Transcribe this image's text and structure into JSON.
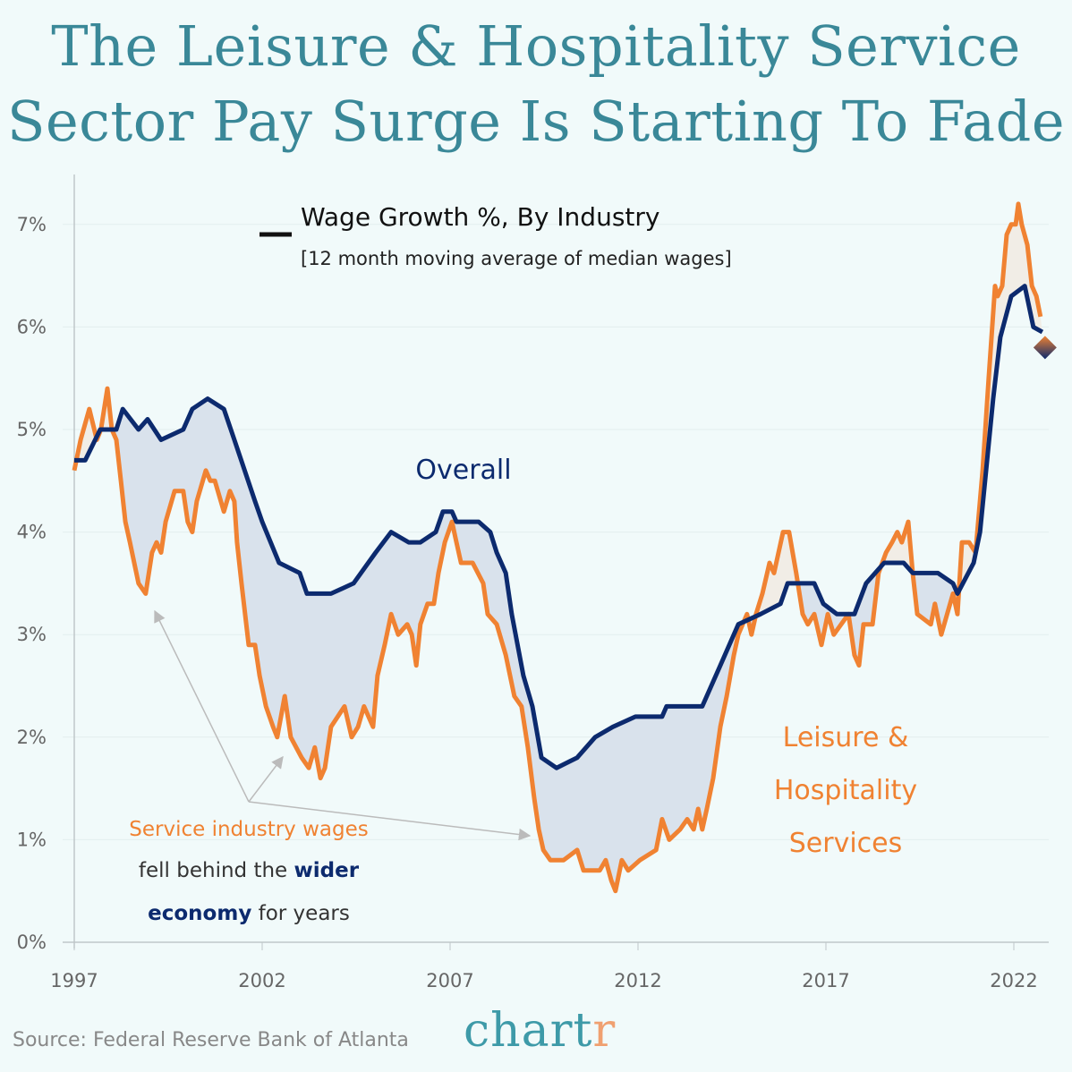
{
  "title_lines": [
    "The Leisure & Hospitality Service",
    "Sector Pay Surge Is Starting To Fade"
  ],
  "source": "Source: Federal Reserve Bank of Atlanta",
  "logo": {
    "main": "chart",
    "accent": "r"
  },
  "colors": {
    "overall": "#0c2a6e",
    "leisure": "#f08232",
    "gap_below": "#d9e2ec",
    "gap_above": "#f1ede6",
    "title": "#3a8898",
    "background": "#f1fafa"
  },
  "chart_data": {
    "type": "line",
    "title": "Wage Growth %, By Industry",
    "subtitle": "[12 month moving average of median wages]",
    "xlim": [
      1997,
      2022.9
    ],
    "ylim": [
      0,
      7.4
    ],
    "x_ticks": [
      1997,
      2002,
      2007,
      2012,
      2017,
      2022
    ],
    "x_tick_labels": [
      "1997",
      "2002",
      "2007",
      "2012",
      "2017",
      "2022"
    ],
    "y_ticks": [
      0,
      1,
      2,
      3,
      4,
      5,
      6,
      7
    ],
    "y_tick_labels": [
      "0%",
      "1%",
      "2%",
      "3%",
      "4%",
      "5%",
      "6%",
      "7%"
    ],
    "grid": "horizontal",
    "series": [
      {
        "name": "Overall",
        "key": "overall",
        "points": [
          [
            1997.0,
            4.7
          ],
          [
            1997.29,
            4.7
          ],
          [
            1997.69,
            5.0
          ],
          [
            1998.12,
            5.0
          ],
          [
            1998.29,
            5.2
          ],
          [
            1998.71,
            5.0
          ],
          [
            1998.95,
            5.1
          ],
          [
            1999.31,
            4.9
          ],
          [
            1999.9,
            5.0
          ],
          [
            2000.14,
            5.2
          ],
          [
            2000.55,
            5.3
          ],
          [
            2000.98,
            5.2
          ],
          [
            2001.26,
            4.9
          ],
          [
            2001.81,
            4.3
          ],
          [
            2002.0,
            4.1
          ],
          [
            2002.45,
            3.7
          ],
          [
            2003.0,
            3.6
          ],
          [
            2003.19,
            3.4
          ],
          [
            2003.83,
            3.4
          ],
          [
            2004.43,
            3.5
          ],
          [
            2005.02,
            3.8
          ],
          [
            2005.43,
            4.0
          ],
          [
            2005.9,
            3.9
          ],
          [
            2006.21,
            3.9
          ],
          [
            2006.62,
            4.0
          ],
          [
            2006.81,
            4.2
          ],
          [
            2007.05,
            4.2
          ],
          [
            2007.17,
            4.1
          ],
          [
            2007.76,
            4.1
          ],
          [
            2008.07,
            4.0
          ],
          [
            2008.24,
            3.8
          ],
          [
            2008.48,
            3.6
          ],
          [
            2008.64,
            3.2
          ],
          [
            2008.95,
            2.6
          ],
          [
            2009.19,
            2.3
          ],
          [
            2009.43,
            1.8
          ],
          [
            2009.83,
            1.7
          ],
          [
            2010.38,
            1.8
          ],
          [
            2010.86,
            2.0
          ],
          [
            2011.33,
            2.1
          ],
          [
            2011.93,
            2.2
          ],
          [
            2012.64,
            2.2
          ],
          [
            2012.76,
            2.3
          ],
          [
            2013.24,
            2.3
          ],
          [
            2013.71,
            2.3
          ],
          [
            2014.19,
            2.7
          ],
          [
            2014.67,
            3.1
          ],
          [
            2015.26,
            3.2
          ],
          [
            2015.79,
            3.3
          ],
          [
            2015.98,
            3.5
          ],
          [
            2016.45,
            3.5
          ],
          [
            2016.69,
            3.5
          ],
          [
            2016.93,
            3.3
          ],
          [
            2017.29,
            3.2
          ],
          [
            2017.76,
            3.2
          ],
          [
            2018.07,
            3.5
          ],
          [
            2018.55,
            3.7
          ],
          [
            2019.07,
            3.7
          ],
          [
            2019.31,
            3.6
          ],
          [
            2019.98,
            3.6
          ],
          [
            2020.38,
            3.5
          ],
          [
            2020.5,
            3.4
          ],
          [
            2020.93,
            3.7
          ],
          [
            2021.1,
            4.0
          ],
          [
            2021.45,
            5.3
          ],
          [
            2021.64,
            5.9
          ],
          [
            2021.93,
            6.3
          ],
          [
            2022.29,
            6.4
          ],
          [
            2022.52,
            6.0
          ],
          [
            2022.76,
            5.95
          ]
        ]
      },
      {
        "name": "Leisure & Hospitality Services",
        "key": "leisure",
        "points": [
          [
            1997.0,
            4.6
          ],
          [
            1997.17,
            4.9
          ],
          [
            1997.4,
            5.2
          ],
          [
            1997.6,
            4.9
          ],
          [
            1997.71,
            5.0
          ],
          [
            1997.88,
            5.4
          ],
          [
            1998.0,
            5.0
          ],
          [
            1998.12,
            4.9
          ],
          [
            1998.24,
            4.5
          ],
          [
            1998.36,
            4.1
          ],
          [
            1998.48,
            3.9
          ],
          [
            1998.71,
            3.5
          ],
          [
            1998.9,
            3.4
          ],
          [
            1999.07,
            3.8
          ],
          [
            1999.19,
            3.9
          ],
          [
            1999.31,
            3.8
          ],
          [
            1999.43,
            4.1
          ],
          [
            1999.67,
            4.4
          ],
          [
            1999.9,
            4.4
          ],
          [
            2000.02,
            4.1
          ],
          [
            2000.14,
            4.0
          ],
          [
            2000.26,
            4.3
          ],
          [
            2000.5,
            4.6
          ],
          [
            2000.62,
            4.5
          ],
          [
            2000.74,
            4.5
          ],
          [
            2000.98,
            4.2
          ],
          [
            2001.14,
            4.4
          ],
          [
            2001.26,
            4.3
          ],
          [
            2001.33,
            3.9
          ],
          [
            2001.45,
            3.5
          ],
          [
            2001.64,
            2.9
          ],
          [
            2001.81,
            2.9
          ],
          [
            2001.93,
            2.6
          ],
          [
            2002.1,
            2.3
          ],
          [
            2002.29,
            2.1
          ],
          [
            2002.4,
            2.0
          ],
          [
            2002.6,
            2.4
          ],
          [
            2002.76,
            2.0
          ],
          [
            2003.05,
            1.8
          ],
          [
            2003.24,
            1.7
          ],
          [
            2003.4,
            1.9
          ],
          [
            2003.55,
            1.6
          ],
          [
            2003.67,
            1.7
          ],
          [
            2003.83,
            2.1
          ],
          [
            2004.19,
            2.3
          ],
          [
            2004.38,
            2.0
          ],
          [
            2004.55,
            2.1
          ],
          [
            2004.71,
            2.3
          ],
          [
            2004.95,
            2.1
          ],
          [
            2005.07,
            2.6
          ],
          [
            2005.26,
            2.9
          ],
          [
            2005.43,
            3.2
          ],
          [
            2005.62,
            3.0
          ],
          [
            2005.86,
            3.1
          ],
          [
            2005.98,
            3.0
          ],
          [
            2006.1,
            2.7
          ],
          [
            2006.21,
            3.1
          ],
          [
            2006.4,
            3.3
          ],
          [
            2006.57,
            3.3
          ],
          [
            2006.69,
            3.6
          ],
          [
            2006.86,
            3.9
          ],
          [
            2007.05,
            4.1
          ],
          [
            2007.17,
            3.9
          ],
          [
            2007.29,
            3.7
          ],
          [
            2007.6,
            3.7
          ],
          [
            2007.88,
            3.5
          ],
          [
            2008.0,
            3.2
          ],
          [
            2008.24,
            3.1
          ],
          [
            2008.48,
            2.8
          ],
          [
            2008.71,
            2.4
          ],
          [
            2008.9,
            2.3
          ],
          [
            2009.07,
            1.9
          ],
          [
            2009.24,
            1.4
          ],
          [
            2009.36,
            1.1
          ],
          [
            2009.48,
            0.9
          ],
          [
            2009.67,
            0.8
          ],
          [
            2010.02,
            0.8
          ],
          [
            2010.38,
            0.9
          ],
          [
            2010.55,
            0.7
          ],
          [
            2010.98,
            0.7
          ],
          [
            2011.14,
            0.8
          ],
          [
            2011.29,
            0.6
          ],
          [
            2011.4,
            0.5
          ],
          [
            2011.57,
            0.8
          ],
          [
            2011.74,
            0.7
          ],
          [
            2012.05,
            0.8
          ],
          [
            2012.48,
            0.9
          ],
          [
            2012.64,
            1.2
          ],
          [
            2012.83,
            1.0
          ],
          [
            2013.12,
            1.1
          ],
          [
            2013.31,
            1.2
          ],
          [
            2013.48,
            1.1
          ],
          [
            2013.6,
            1.3
          ],
          [
            2013.71,
            1.1
          ],
          [
            2013.83,
            1.3
          ],
          [
            2014.0,
            1.6
          ],
          [
            2014.19,
            2.1
          ],
          [
            2014.36,
            2.4
          ],
          [
            2014.55,
            2.8
          ],
          [
            2014.67,
            3.0
          ],
          [
            2014.9,
            3.2
          ],
          [
            2015.02,
            3.0
          ],
          [
            2015.14,
            3.2
          ],
          [
            2015.31,
            3.4
          ],
          [
            2015.5,
            3.7
          ],
          [
            2015.62,
            3.6
          ],
          [
            2015.86,
            4.0
          ],
          [
            2016.02,
            4.0
          ],
          [
            2016.21,
            3.6
          ],
          [
            2016.38,
            3.2
          ],
          [
            2016.52,
            3.1
          ],
          [
            2016.69,
            3.2
          ],
          [
            2016.88,
            2.9
          ],
          [
            2017.05,
            3.2
          ],
          [
            2017.21,
            3.0
          ],
          [
            2017.6,
            3.2
          ],
          [
            2017.76,
            2.8
          ],
          [
            2017.88,
            2.7
          ],
          [
            2018.0,
            3.1
          ],
          [
            2018.24,
            3.1
          ],
          [
            2018.4,
            3.6
          ],
          [
            2018.6,
            3.8
          ],
          [
            2018.76,
            3.9
          ],
          [
            2018.9,
            4.0
          ],
          [
            2019.02,
            3.9
          ],
          [
            2019.19,
            4.1
          ],
          [
            2019.31,
            3.6
          ],
          [
            2019.43,
            3.2
          ],
          [
            2019.79,
            3.1
          ],
          [
            2019.9,
            3.3
          ],
          [
            2020.07,
            3.0
          ],
          [
            2020.38,
            3.4
          ],
          [
            2020.5,
            3.2
          ],
          [
            2020.62,
            3.9
          ],
          [
            2020.81,
            3.9
          ],
          [
            2020.98,
            3.8
          ],
          [
            2021.17,
            4.6
          ],
          [
            2021.33,
            5.5
          ],
          [
            2021.5,
            6.4
          ],
          [
            2021.57,
            6.3
          ],
          [
            2021.69,
            6.4
          ],
          [
            2021.81,
            6.9
          ],
          [
            2021.93,
            7.0
          ],
          [
            2022.05,
            7.0
          ],
          [
            2022.12,
            7.2
          ],
          [
            2022.21,
            7.0
          ],
          [
            2022.36,
            6.8
          ],
          [
            2022.48,
            6.4
          ],
          [
            2022.6,
            6.3
          ],
          [
            2022.71,
            6.1
          ]
        ]
      }
    ],
    "end_marker": {
      "x": 2022.83,
      "y": 5.8,
      "shape": "diamond"
    },
    "annotations": {
      "overall_label": "Overall",
      "leisure_label_lines": [
        "Leisure &",
        "Hospitality",
        "Services"
      ],
      "note": {
        "part1": "Service industry wages",
        "part2a": "fell behind the ",
        "part2b": "wider",
        "part3a": "economy",
        "part3b": " for years"
      }
    }
  }
}
